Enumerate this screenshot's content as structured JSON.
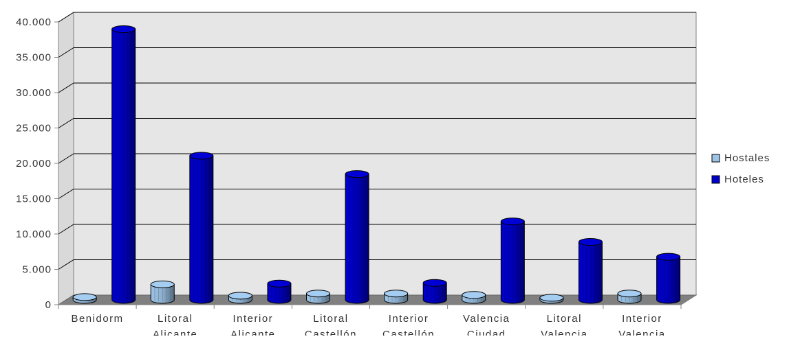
{
  "chart_data": {
    "type": "bar",
    "title": "",
    "xlabel": "",
    "ylabel": "",
    "ylim": [
      0,
      40000
    ],
    "yticks": [
      0,
      5000,
      10000,
      15000,
      20000,
      25000,
      30000,
      35000,
      40000
    ],
    "ytick_labels": [
      "0",
      "5.000",
      "10.000",
      "15.000",
      "20.000",
      "25.000",
      "30.000",
      "35.000",
      "40.000"
    ],
    "grid": true,
    "legend_position": "right",
    "categories": [
      [
        "Benidorm"
      ],
      [
        "Litoral",
        "Alicante"
      ],
      [
        "Interior",
        "Alicante"
      ],
      [
        "Litoral",
        "Castellón"
      ],
      [
        "Interior",
        "Castellón"
      ],
      [
        "Valencia",
        "Ciudad"
      ],
      [
        "Litoral",
        "Valencia"
      ],
      [
        "Interior",
        "Valencia"
      ]
    ],
    "series": [
      {
        "name": "Hostales",
        "color": "#9dc3e6",
        "values": [
          400,
          2200,
          600,
          900,
          900,
          700,
          300,
          900
        ]
      },
      {
        "name": "Hoteles",
        "color": "#0000cc",
        "values": [
          38300,
          20400,
          2300,
          17800,
          2400,
          11100,
          8200,
          6100
        ]
      }
    ]
  }
}
